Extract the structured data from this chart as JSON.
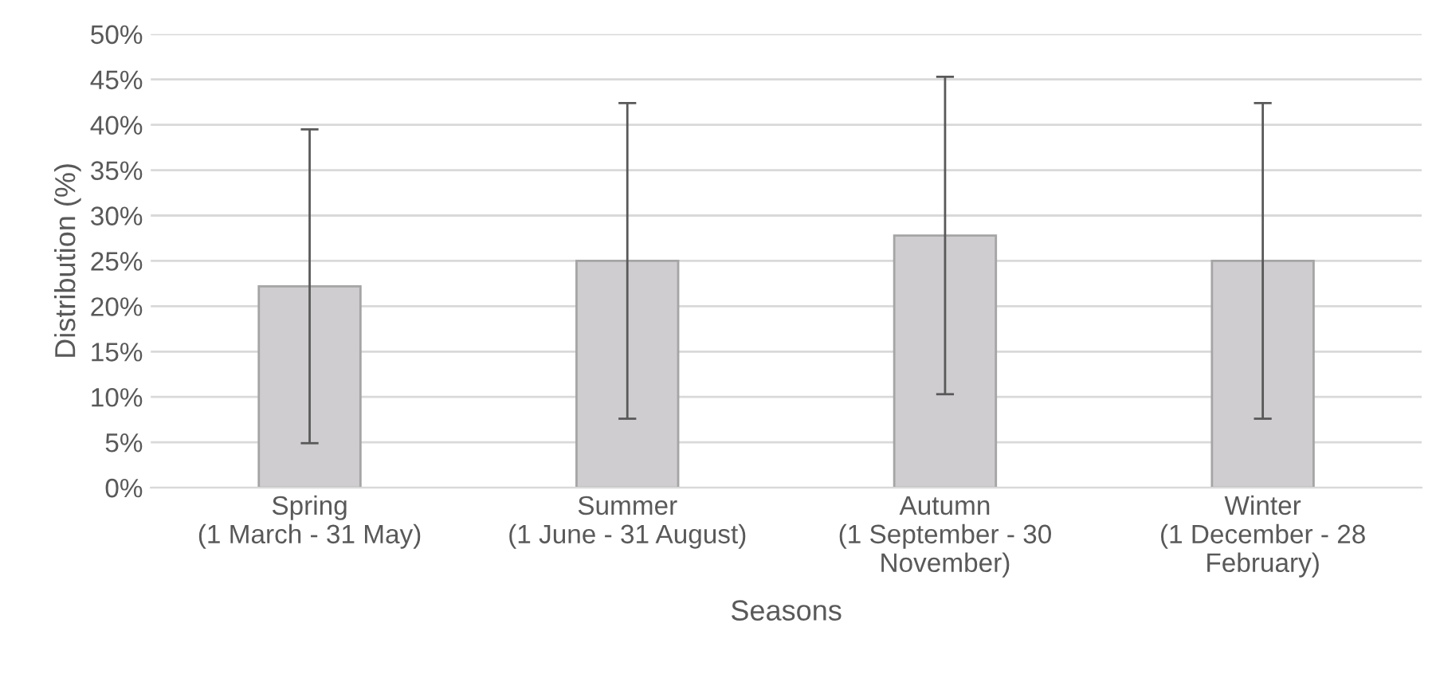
{
  "chart_data": {
    "type": "bar",
    "xlabel": "Seasons",
    "ylabel": "Distribution (%)",
    "categories": [
      "Spring\n(1 March - 31 May)",
      "Summer\n(1 June - 31 August)",
      "Autumn\n(1 September - 30\nNovember)",
      "Winter\n(1 December - 28\nFebruary)"
    ],
    "series": [
      {
        "color": "#cfcdcf",
        "values": [
          22.2,
          25.0,
          27.8,
          25.0
        ],
        "errors": [
          17.3,
          17.4,
          17.5,
          17.4
        ]
      }
    ],
    "ylim": [
      0,
      50
    ],
    "yticks": [
      {
        "value": 0,
        "label": "0%"
      },
      {
        "value": 5,
        "label": "5%"
      },
      {
        "value": 10,
        "label": "10%"
      },
      {
        "value": 15,
        "label": "15%"
      },
      {
        "value": 20,
        "label": "20%"
      },
      {
        "value": 25,
        "label": "25%"
      },
      {
        "value": 30,
        "label": "30%"
      },
      {
        "value": 35,
        "label": "35%"
      },
      {
        "value": 40,
        "label": "40%"
      },
      {
        "value": 45,
        "label": "45%"
      },
      {
        "value": 50,
        "label": "50%"
      }
    ],
    "grid": "y"
  }
}
